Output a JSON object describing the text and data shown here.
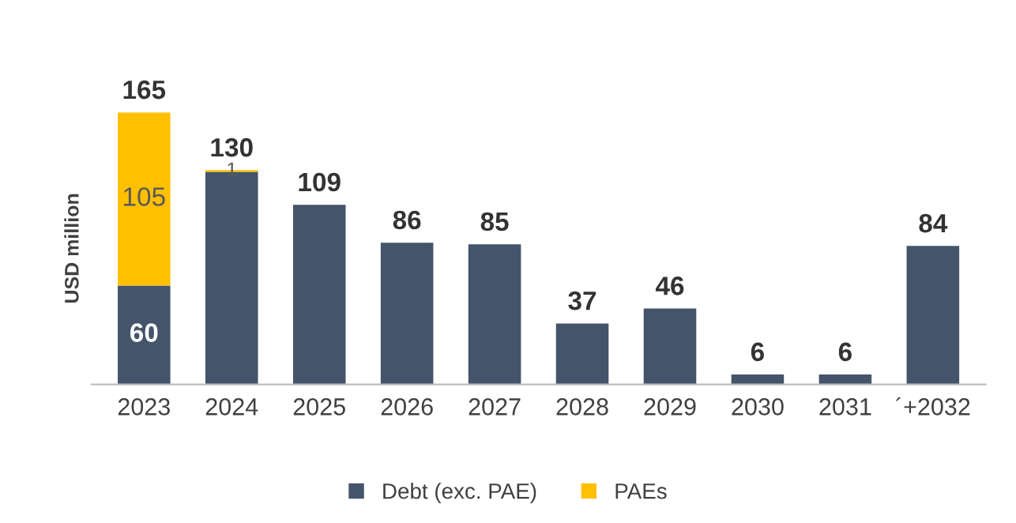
{
  "chart_data": {
    "type": "bar",
    "stacked": true,
    "ylabel": "USD million",
    "categories": [
      "2023",
      "2024",
      "2025",
      "2026",
      "2027",
      "2028",
      "2029",
      "2030",
      "2031",
      "´+2032"
    ],
    "series": [
      {
        "name": "Debt (exc. PAE)",
        "color": "#44546a",
        "values": [
          60,
          129,
          109,
          86,
          85,
          37,
          46,
          6,
          6,
          84
        ],
        "value_labels": [
          "60",
          null,
          null,
          null,
          null,
          null,
          null,
          null,
          null,
          null
        ]
      },
      {
        "name": "PAEs",
        "color": "#ffc000",
        "values": [
          105,
          1,
          null,
          null,
          null,
          null,
          null,
          null,
          null,
          null
        ],
        "value_labels": [
          "105",
          "1",
          null,
          null,
          null,
          null,
          null,
          null,
          null,
          null
        ]
      }
    ],
    "totals": [
      "165",
      "130",
      "109",
      "86",
      "85",
      "37",
      "46",
      "6",
      "6",
      "84"
    ],
    "legend": "bottom",
    "grid": false
  }
}
